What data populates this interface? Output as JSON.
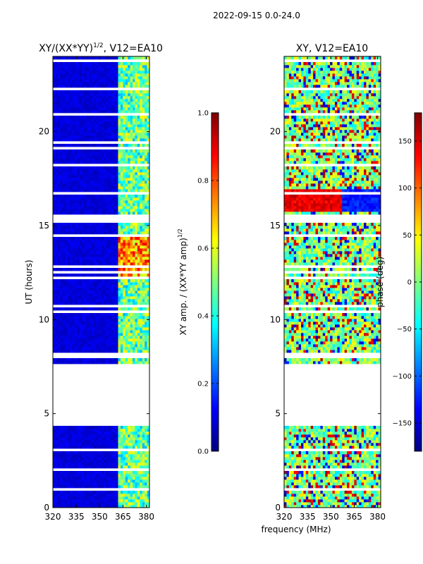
{
  "suptitle": "2022-09-15 0.0-24.0",
  "colors": {
    "background": "#ffffff",
    "blank_row": "#ffffff",
    "axis": "#000000"
  },
  "chart_data": [
    {
      "type": "heatmap",
      "title_main": "XY/(XX*YY)",
      "title_exp": "1/2",
      "title_tail": ", V12=EA10",
      "xlabel": "",
      "ylabel": "UT (hours)",
      "xlim": [
        320,
        382
      ],
      "ylim": [
        0,
        24
      ],
      "xticks": [
        320,
        335,
        350,
        365,
        380
      ],
      "yticks": [
        0,
        5,
        10,
        15,
        20
      ],
      "data_gaps_hours": [
        [
          4.4,
          7.6
        ],
        [
          15.1,
          15.55
        ]
      ],
      "rfi_band_mhz": [
        362,
        382
      ],
      "colorbar": {
        "label_main": "XY amp. / (XX*YY amp)",
        "label_exp": "1/2",
        "range": [
          0.0,
          1.0
        ],
        "ticks": [
          "0.0",
          "0.2",
          "0.4",
          "0.6",
          "0.8",
          "1.0"
        ],
        "colormap": "jet"
      }
    },
    {
      "type": "heatmap",
      "title": "XY, V12=EA10",
      "xlabel": "frequency (MHz)",
      "ylabel": "",
      "xlim": [
        320,
        382
      ],
      "ylim": [
        0,
        24
      ],
      "xticks": [
        320,
        335,
        350,
        365,
        380
      ],
      "yticks": [
        0,
        5,
        10,
        15,
        20
      ],
      "data_gaps_hours": [
        [
          4.4,
          7.6
        ],
        [
          15.1,
          15.55
        ]
      ],
      "colorbar": {
        "label": "phase (deg)",
        "range": [
          -180,
          180
        ],
        "ticks": [
          "−150",
          "−100",
          "−50",
          "0",
          "50",
          "100",
          "150"
        ],
        "colormap": "jet"
      }
    }
  ]
}
